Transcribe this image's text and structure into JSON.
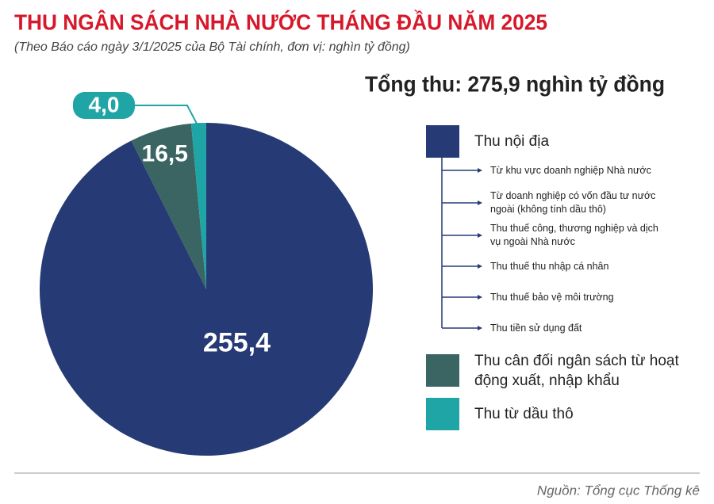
{
  "chart_data": {
    "type": "pie",
    "title": "THU NGÂN SÁCH NHÀ NƯỚC THÁNG ĐẦU NĂM 2025",
    "subtitle": "(Theo Báo cáo ngày 3/1/2025 của Bộ Tài chính, đơn vị: nghìn tỷ đồng)",
    "total_label": "Tổng thu: 275,9 nghìn tỷ đồng",
    "categories": [
      "Thu nội địa",
      "Thu cân đối ngân sách từ hoạt động xuất, nhập khẩu",
      "Thu từ dầu thô"
    ],
    "values": [
      255.4,
      16.5,
      4.0
    ],
    "value_labels": [
      "255,4",
      "16,5",
      "4,0"
    ],
    "colors": [
      "#263a75",
      "#3a6563",
      "#1fa5a5"
    ],
    "sub_items": [
      "Từ khu vực doanh nghiệp Nhà nước",
      "Từ doanh nghiệp có vốn đầu tư nước ngoài (không tính dầu thô)",
      "Thu thuế công, thương nghiệp và dịch vụ ngoài Nhà nước",
      "Thu thuế thu nhập cá nhân",
      "Thu thuế bảo vệ môi trường",
      "Thu tiền sử dụng đất"
    ],
    "source": "Nguồn: Tổng cục Thống kê"
  }
}
